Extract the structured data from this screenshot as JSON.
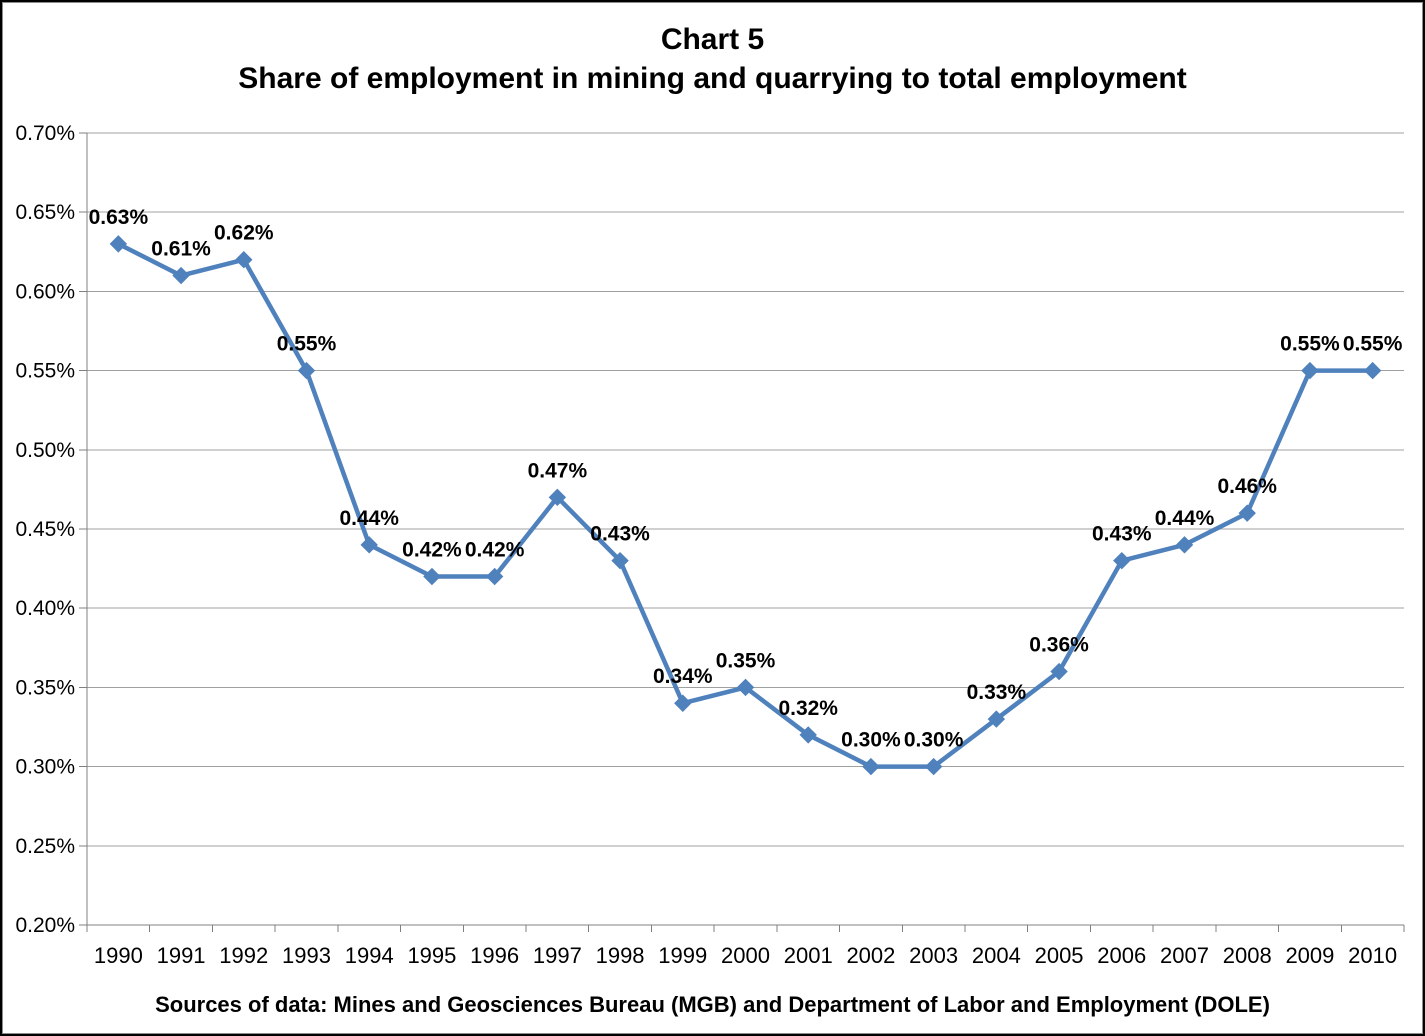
{
  "frame": {
    "background": "#FFFFFF",
    "border_color": "#000000"
  },
  "chart_data": {
    "type": "line",
    "title": "Chart 5",
    "subtitle": "Share of employment in mining and quarrying to total employment",
    "source_note": "Sources of data: Mines and Geosciences Bureau (MGB) and Department of Labor and Employment (DOLE)",
    "categories": [
      "1990",
      "1991",
      "1992",
      "1993",
      "1994",
      "1995",
      "1996",
      "1997",
      "1998",
      "1999",
      "2000",
      "2001",
      "2002",
      "2003",
      "2004",
      "2005",
      "2006",
      "2007",
      "2008",
      "2009",
      "2010"
    ],
    "series": [
      {
        "name": "Share of employment in mining and quarrying to total employment",
        "values": [
          0.63,
          0.61,
          0.62,
          0.55,
          0.44,
          0.42,
          0.42,
          0.47,
          0.43,
          0.34,
          0.35,
          0.32,
          0.3,
          0.3,
          0.33,
          0.36,
          0.43,
          0.44,
          0.46,
          0.55,
          0.55
        ],
        "data_labels": [
          "0.63%",
          "0.61%",
          "0.62%",
          "0.55%",
          "0.44%",
          "0.42%",
          "0.42%",
          "0.47%",
          "0.43%",
          "0.34%",
          "0.35%",
          "0.32%",
          "0.30%",
          "0.30%",
          "0.33%",
          "0.36%",
          "0.43%",
          "0.44%",
          "0.46%",
          "0.55%",
          "0.55%"
        ],
        "color": "#4F81BD",
        "marker": "diamond"
      }
    ],
    "xlabel": "",
    "ylabel": "",
    "ylim": [
      0.2,
      0.7
    ],
    "y_step": 0.05,
    "y_tick_labels": [
      "0.70%",
      "0.65%",
      "0.60%",
      "0.55%",
      "0.50%",
      "0.45%",
      "0.40%",
      "0.35%",
      "0.30%",
      "0.25%",
      "0.20%"
    ],
    "grid": true,
    "legend": "none",
    "colors": {
      "line": "#4F81BD",
      "gridline": "#A0A0A0",
      "axis": "#808080",
      "text": "#000000"
    }
  }
}
